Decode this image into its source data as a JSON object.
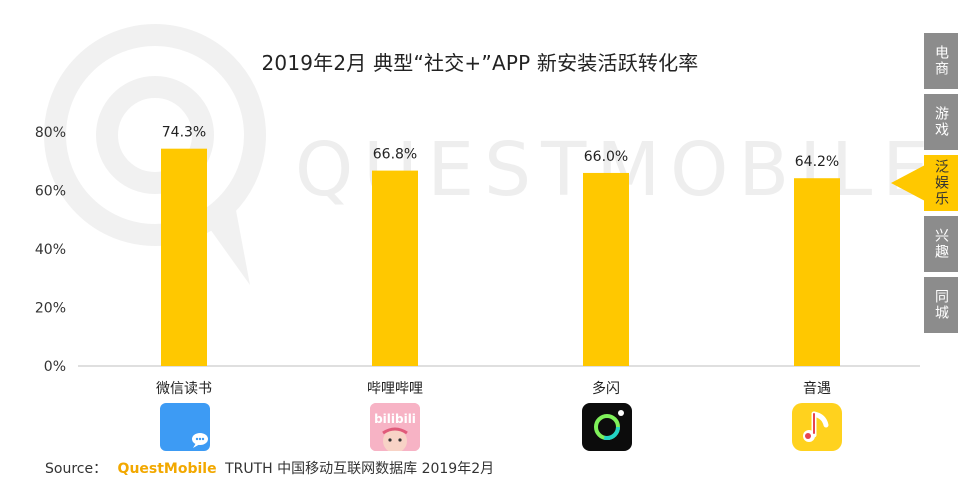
{
  "chart_data": {
    "type": "bar",
    "title": "2019年2月 典型“社交+”APP 新安装活跃转化率",
    "categories": [
      "微信读书",
      "哔哩哔哩",
      "多闪",
      "音遇"
    ],
    "values": [
      74.3,
      66.8,
      66.0,
      64.2
    ],
    "value_labels": [
      "74.3%",
      "66.8%",
      "66.0%",
      "64.2%"
    ],
    "y_ticks": [
      "0%",
      "20%",
      "40%",
      "60%",
      "80%"
    ],
    "y_tick_values": [
      0,
      20,
      40,
      60,
      80
    ],
    "ylim": [
      0,
      80
    ],
    "grid": false,
    "bar_color": "#ffc800"
  },
  "icons": {
    "weixin_dushu": "chat-bubble-icon",
    "bilibili": "bilibili-logo-icon",
    "bilibili_text": "bilibili",
    "duoshan": "ring-icon",
    "yinyu": "music-note-icon"
  },
  "watermark": {
    "text": "QUESTMOBILE"
  },
  "source": {
    "prefix": "Source：",
    "brand": "QuestMobile",
    "rest": "TRUTH 中国移动互联网数据库 2019年2月"
  },
  "side_tabs": [
    {
      "label": "电商",
      "active": false
    },
    {
      "label": "游戏",
      "active": false
    },
    {
      "label": "泛娱乐",
      "active": true
    },
    {
      "label": "兴趣",
      "active": false
    },
    {
      "label": "同城",
      "active": false
    }
  ],
  "colors": {
    "accent": "#ffc800",
    "tab_inactive": "#8c8c8c",
    "brand": "#f2a800"
  }
}
